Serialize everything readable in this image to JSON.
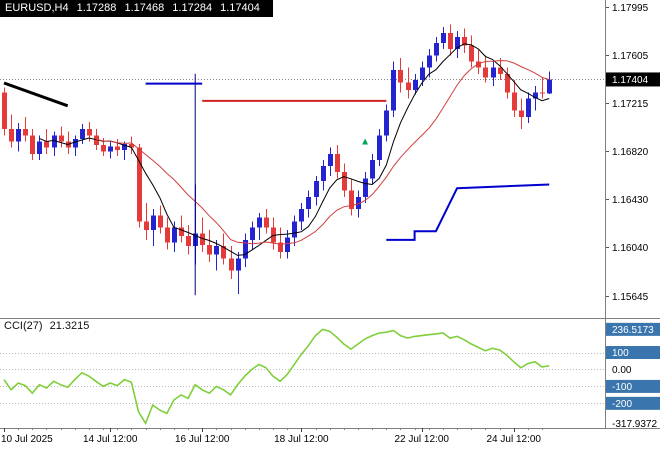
{
  "header": {
    "symbol_period": "EURUSD,H4",
    "open": "1.17288",
    "high": "1.17468",
    "low": "1.17284",
    "close": "1.17404"
  },
  "indicator": {
    "name": "CCI(27)",
    "value": "21.3215"
  },
  "colors": {
    "bull": "#2323CF",
    "bear": "#E43A3A",
    "ma_fast": "#000000",
    "ma_slow": "#D23F3F",
    "cci": "#7FCF3A",
    "level_box_bg": "#3A76AD",
    "level_box_text": "#FFFFFF",
    "price_tag_bg": "#000000",
    "price_tag_text": "#FFFFFF",
    "overlay_blue": "#0000CD",
    "overlay_red": "#CC2222",
    "overlay_navy": "#000080",
    "trendline": "#000000",
    "marker_green": "#00A650",
    "axis_text": "#000000",
    "grid_dotted": "#BBBBBB",
    "separator": "#808080",
    "current_line": "#888888"
  },
  "chart_data": [
    {
      "type": "candlestick",
      "symbol": "EURUSD",
      "timeframe": "H4",
      "y_axis": {
        "labels": [
          {
            "text": "1.17995",
            "value": 1.17995
          },
          {
            "text": "1.17605",
            "value": 1.17605
          },
          {
            "text": "1.17215",
            "value": 1.17215
          },
          {
            "text": "1.16820",
            "value": 1.1682
          },
          {
            "text": "1.16430",
            "value": 1.1643
          },
          {
            "text": "1.16040",
            "value": 1.1604
          },
          {
            "text": "1.15645",
            "value": 1.15645
          }
        ],
        "current": {
          "text": "1.17404",
          "value": 1.17404
        }
      },
      "x_axis": {
        "labels": [
          {
            "text": "10 Jul 2025",
            "index": 0,
            "align": "left"
          },
          {
            "text": "14 Jul 12:00",
            "index": 15
          },
          {
            "text": "16 Jul 12:00",
            "index": 28
          },
          {
            "text": "18 Jul 12:00",
            "index": 42
          },
          {
            "text": "22 Jul 12:00",
            "index": 59
          },
          {
            "text": "24 Jul 12:00",
            "index": 72
          }
        ]
      },
      "ohlc": [
        [
          1.173,
          1.1734,
          1.1695,
          1.17
        ],
        [
          1.17,
          1.1712,
          1.1685,
          1.169
        ],
        [
          1.169,
          1.1705,
          1.1682,
          1.17
        ],
        [
          1.17,
          1.171,
          1.169,
          1.1695
        ],
        [
          1.1695,
          1.17,
          1.1675,
          1.168
        ],
        [
          1.168,
          1.1695,
          1.1675,
          1.169
        ],
        [
          1.169,
          1.17,
          1.168,
          1.1685
        ],
        [
          1.1685,
          1.1698,
          1.1678,
          1.1695
        ],
        [
          1.1695,
          1.1702,
          1.1685,
          1.169
        ],
        [
          1.169,
          1.1698,
          1.168,
          1.1685
        ],
        [
          1.1685,
          1.1695,
          1.1678,
          1.1692
        ],
        [
          1.1692,
          1.1704,
          1.1688,
          1.17
        ],
        [
          1.17,
          1.1706,
          1.169,
          1.1695
        ],
        [
          1.1695,
          1.17,
          1.1683,
          1.1687
        ],
        [
          1.1687,
          1.1693,
          1.1678,
          1.1682
        ],
        [
          1.1682,
          1.169,
          1.1676,
          1.1686
        ],
        [
          1.1686,
          1.1692,
          1.1678,
          1.1683
        ],
        [
          1.1683,
          1.169,
          1.1675,
          1.1688
        ],
        [
          1.1688,
          1.1694,
          1.168,
          1.1685
        ],
        [
          1.1685,
          1.1688,
          1.162,
          1.1625
        ],
        [
          1.1625,
          1.164,
          1.161,
          1.1618
        ],
        [
          1.1618,
          1.1635,
          1.1605,
          1.163
        ],
        [
          1.163,
          1.1638,
          1.1615,
          1.162
        ],
        [
          1.162,
          1.1628,
          1.1602,
          1.1608
        ],
        [
          1.1608,
          1.1625,
          1.16,
          1.162
        ],
        [
          1.162,
          1.163,
          1.1608,
          1.1613
        ],
        [
          1.1613,
          1.1622,
          1.1598,
          1.1605
        ],
        [
          1.1605,
          1.1655,
          1.159,
          1.1615
        ],
        [
          1.1615,
          1.1628,
          1.16,
          1.1606
        ],
        [
          1.1606,
          1.1618,
          1.1592,
          1.1598
        ],
        [
          1.1598,
          1.161,
          1.1585,
          1.1605
        ],
        [
          1.1605,
          1.1615,
          1.159,
          1.1595
        ],
        [
          1.1595,
          1.1605,
          1.1578,
          1.1585
        ],
        [
          1.1585,
          1.16,
          1.1566,
          1.1595
        ],
        [
          1.1595,
          1.1615,
          1.1588,
          1.161
        ],
        [
          1.161,
          1.1625,
          1.1602,
          1.162
        ],
        [
          1.162,
          1.1632,
          1.161,
          1.1628
        ],
        [
          1.1628,
          1.1635,
          1.1615,
          1.162
        ],
        [
          1.162,
          1.1628,
          1.1602,
          1.1608
        ],
        [
          1.1608,
          1.162,
          1.1595,
          1.16
        ],
        [
          1.16,
          1.1618,
          1.1595,
          1.1612
        ],
        [
          1.1612,
          1.163,
          1.1605,
          1.1625
        ],
        [
          1.1625,
          1.164,
          1.1618,
          1.1635
        ],
        [
          1.1635,
          1.165,
          1.1628,
          1.1645
        ],
        [
          1.1645,
          1.1662,
          1.1638,
          1.1658
        ],
        [
          1.1658,
          1.1675,
          1.165,
          1.167
        ],
        [
          1.167,
          1.1685,
          1.1662,
          1.168
        ],
        [
          1.168,
          1.1687,
          1.166,
          1.1665
        ],
        [
          1.1665,
          1.1672,
          1.1645,
          1.165
        ],
        [
          1.165,
          1.166,
          1.163,
          1.1635
        ],
        [
          1.1635,
          1.165,
          1.1628,
          1.1645
        ],
        [
          1.1645,
          1.1665,
          1.164,
          1.166
        ],
        [
          1.166,
          1.168,
          1.1655,
          1.1675
        ],
        [
          1.1675,
          1.17,
          1.167,
          1.1695
        ],
        [
          1.1695,
          1.172,
          1.169,
          1.1715
        ],
        [
          1.1715,
          1.1755,
          1.171,
          1.1748
        ],
        [
          1.1748,
          1.1758,
          1.173,
          1.1738
        ],
        [
          1.1738,
          1.175,
          1.1725,
          1.1732
        ],
        [
          1.1732,
          1.1745,
          1.1728,
          1.174
        ],
        [
          1.174,
          1.1755,
          1.1735,
          1.175
        ],
        [
          1.175,
          1.1765,
          1.1742,
          1.176
        ],
        [
          1.176,
          1.1775,
          1.1755,
          1.177
        ],
        [
          1.177,
          1.1783,
          1.1765,
          1.1778
        ],
        [
          1.1778,
          1.1785,
          1.176,
          1.1765
        ],
        [
          1.1765,
          1.178,
          1.1758,
          1.1775
        ],
        [
          1.1775,
          1.1782,
          1.1762,
          1.1768
        ],
        [
          1.1768,
          1.1776,
          1.175,
          1.1755
        ],
        [
          1.1755,
          1.1765,
          1.1745,
          1.175
        ],
        [
          1.175,
          1.176,
          1.1738,
          1.1742
        ],
        [
          1.1742,
          1.1755,
          1.1735,
          1.175
        ],
        [
          1.175,
          1.1758,
          1.174,
          1.1745
        ],
        [
          1.1745,
          1.175,
          1.1725,
          1.173
        ],
        [
          1.173,
          1.174,
          1.171,
          1.1715
        ],
        [
          1.1715,
          1.1725,
          1.17,
          1.171
        ],
        [
          1.171,
          1.173,
          1.1705,
          1.1725
        ],
        [
          1.1725,
          1.1735,
          1.1715,
          1.173
        ],
        [
          1.173,
          1.1742,
          1.1725,
          1.1729
        ],
        [
          1.17288,
          1.17468,
          1.17284,
          1.17404
        ]
      ],
      "overlays": [
        {
          "name": "black-trendline",
          "color": "#000000",
          "width": 3,
          "points": [
            [
              0,
              1.17375
            ],
            [
              9,
              1.1719
            ]
          ]
        },
        {
          "name": "blue-level-line",
          "color": "#0000CD",
          "width": 2,
          "points": [
            [
              20,
              1.1737
            ],
            [
              28,
              1.1737
            ]
          ]
        },
        {
          "name": "red-level-line",
          "color": "#CC2222",
          "width": 2,
          "points": [
            [
              28,
              1.1723
            ],
            [
              54,
              1.1723
            ]
          ]
        },
        {
          "name": "navy-vertical-line",
          "color": "#000080",
          "width": 1,
          "points": [
            [
              27,
              1.1745
            ],
            [
              27,
              1.1565
            ]
          ]
        },
        {
          "name": "blue-step-line",
          "color": "#0000CD",
          "width": 2,
          "points": [
            [
              54,
              1.161
            ],
            [
              58,
              1.161
            ],
            [
              58,
              1.1617
            ],
            [
              61,
              1.1617
            ],
            [
              64,
              1.1652
            ],
            [
              77,
              1.1655
            ]
          ]
        },
        {
          "name": "green-marker",
          "type": "marker",
          "index": 51,
          "price": 1.169,
          "color": "#00A650"
        }
      ]
    },
    {
      "type": "line",
      "name": "CCI",
      "period": 27,
      "levels": [
        100,
        0,
        -100,
        -200
      ],
      "y_axis": {
        "labels": [
          {
            "text": "236.5173",
            "value": 236.5173,
            "boxed": true
          },
          {
            "text": "100",
            "value": 100,
            "boxed": true
          },
          {
            "text": "0.00",
            "value": 0,
            "boxed": false
          },
          {
            "text": "-100",
            "value": -100,
            "boxed": true
          },
          {
            "text": "-200",
            "value": -200,
            "boxed": true
          },
          {
            "text": "-317.9372",
            "value": -317.9372,
            "boxed": false
          }
        ]
      },
      "values": [
        -60,
        -120,
        -80,
        -95,
        -140,
        -90,
        -110,
        -70,
        -90,
        -105,
        -60,
        -20,
        -40,
        -70,
        -100,
        -80,
        -95,
        -60,
        -75,
        -250,
        -317.9372,
        -210,
        -240,
        -260,
        -180,
        -150,
        -170,
        -90,
        -120,
        -140,
        -100,
        -120,
        -150,
        -90,
        -40,
        0,
        30,
        10,
        -40,
        -70,
        -30,
        30,
        90,
        140,
        200,
        236.5173,
        225,
        190,
        150,
        120,
        150,
        180,
        200,
        215,
        220,
        230,
        200,
        185,
        195,
        200,
        205,
        210,
        215,
        185,
        195,
        175,
        150,
        130,
        110,
        125,
        115,
        85,
        45,
        10,
        35,
        45,
        15,
        21.3215
      ]
    }
  ]
}
